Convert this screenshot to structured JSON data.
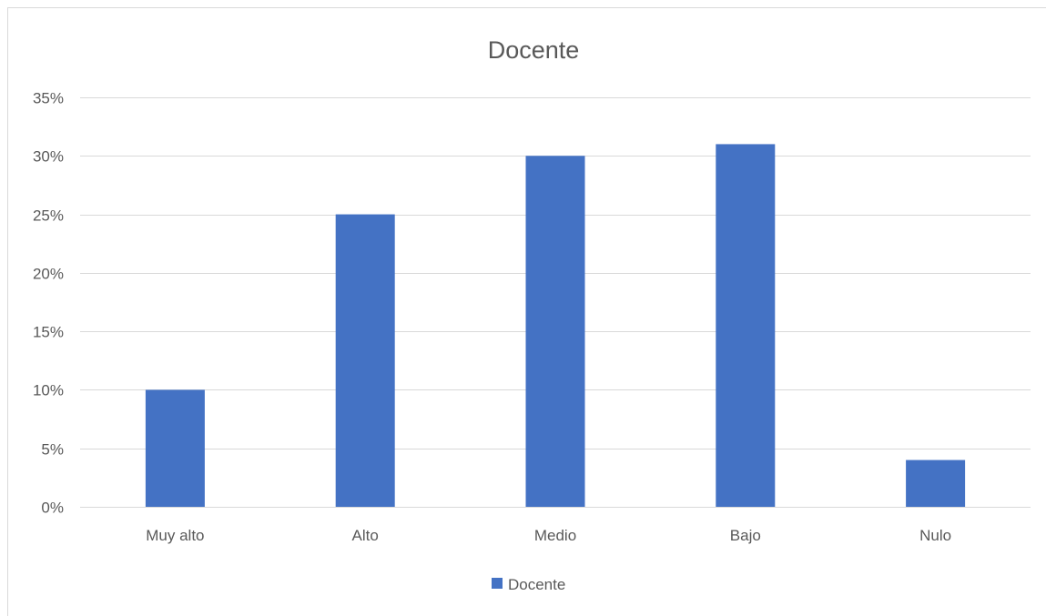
{
  "chart_data": {
    "type": "bar",
    "title": "Docente",
    "xlabel": "",
    "ylabel": "",
    "categories": [
      "Muy alto",
      "Alto",
      "Medio",
      "Bajo",
      "Nulo"
    ],
    "series": [
      {
        "name": "Docente",
        "values": [
          0.1,
          0.25,
          0.3,
          0.31,
          0.04
        ],
        "color": "#4472C4"
      }
    ],
    "ylim": [
      0,
      0.35
    ],
    "yticks": [
      0,
      0.05,
      0.1,
      0.15,
      0.2,
      0.25,
      0.3,
      0.35
    ],
    "ytick_labels": [
      "0%",
      "5%",
      "10%",
      "15%",
      "20%",
      "25%",
      "30%",
      "35%"
    ],
    "grid": true,
    "legend_position": "bottom",
    "gridline_color": "#d9d9d9"
  }
}
